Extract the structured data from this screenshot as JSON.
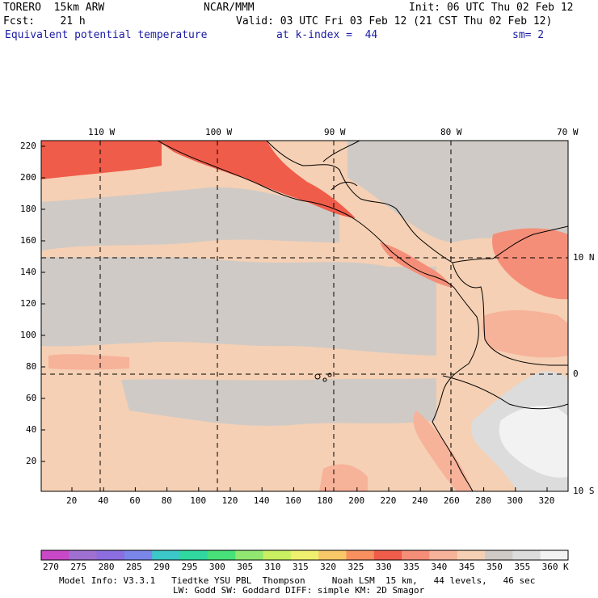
{
  "header": {
    "model": "TORERO  15km ARW",
    "center": "NCAR/MMM",
    "init": "Init: 06 UTC Thu 02 Feb 12",
    "fcst": "Fcst:    21 h",
    "valid": "Valid: 03 UTC Fri 03 Feb 12 (21 CST Thu 02 Feb 12)",
    "field": "Equivalent potential temperature",
    "level": "at k-index =  44",
    "smoothing": "sm= 2"
  },
  "map": {
    "top_lon_labels": [
      "110 W",
      "100 W",
      "90 W",
      "80 W",
      "70 W"
    ],
    "right_lat_labels": [
      "10 N",
      "0",
      "10 S"
    ],
    "left_grid_labels": [
      "220",
      "200",
      "180",
      "160",
      "140",
      "120",
      "100",
      "80",
      "60",
      "40",
      "20"
    ],
    "bottom_grid_labels": [
      "20",
      "40",
      "60",
      "80",
      "100",
      "120",
      "140",
      "160",
      "180",
      "200",
      "220",
      "240",
      "260",
      "280",
      "300",
      "320"
    ],
    "colors": {
      "ocean_low": "#f5d0b4",
      "ocean_mid": "#cfcac6",
      "warm1": "#f7b29a",
      "warm2": "#f58e78",
      "warm3": "#f05c4a",
      "cold_white": "#f2f2f2",
      "cold_grey": "#dcdcdc",
      "coast": "#000000"
    }
  },
  "colorbar": {
    "labels": [
      "270",
      "275",
      "280",
      "285",
      "290",
      "295",
      "300",
      "305",
      "310",
      "315",
      "320",
      "325",
      "330",
      "335",
      "340",
      "345",
      "350",
      "355",
      "360",
      "K"
    ],
    "colors": [
      "#c848c8",
      "#a070d0",
      "#8c6ee0",
      "#7a86e8",
      "#3cc8c8",
      "#30d8a0",
      "#48e078",
      "#90e870",
      "#c8f060",
      "#f0f070",
      "#f8c868",
      "#f89060",
      "#f05c4a",
      "#f58e78",
      "#f7b29a",
      "#f5d0b4",
      "#cfcac6",
      "#dcdcdc",
      "#f2f2f2"
    ]
  },
  "footer": {
    "line1": "Model Info: V3.3.1   Tiedtke YSU PBL  Thompson     Noah LSM  15 km,   44 levels,   46 sec",
    "line2": "LW: Godd SW: Goddard DIFF: simple KM: 2D Smagor"
  }
}
